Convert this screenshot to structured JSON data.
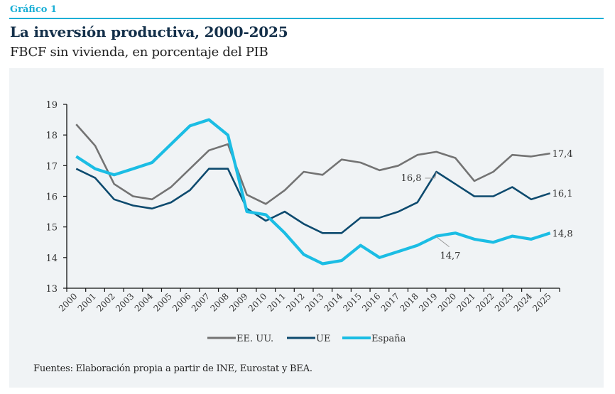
{
  "header": {
    "kicker": "Gráfico 1",
    "title": "La inversión productiva, 2000-2025",
    "subtitle": "FBCF sin vivienda, en porcentaje del PIB"
  },
  "footer": {
    "source": "Fuentes: Elaboración propia a partir de INE, Eurostat y BEA."
  },
  "colors": {
    "accent": "#1aafd6",
    "us": "#737373",
    "eu": "#0d4a6e",
    "spain": "#1bbde4",
    "panel": "#f0f3f5"
  },
  "chart_data": {
    "type": "line",
    "title": "La inversión productiva, 2000-2025",
    "subtitle": "FBCF sin vivienda, en porcentaje del PIB",
    "xlabel": "",
    "ylabel": "",
    "ylim": [
      13,
      19
    ],
    "yticks": [
      "13",
      "14",
      "15",
      "16",
      "17",
      "18",
      "19"
    ],
    "grid": false,
    "legend_position": "bottom",
    "categories": [
      "2000",
      "2001",
      "2002",
      "2003",
      "2004",
      "2005",
      "2006",
      "2007",
      "2008",
      "2009",
      "2010",
      "2011",
      "2012",
      "2013",
      "2014",
      "2015",
      "2016",
      "2017",
      "2018",
      "2019",
      "2020",
      "2021",
      "2022",
      "2023",
      "2024",
      "2025"
    ],
    "series": [
      {
        "name": "EE. UU.",
        "key": "us",
        "values": [
          18.35,
          17.65,
          16.4,
          16.0,
          15.9,
          16.3,
          16.9,
          17.5,
          17.7,
          16.05,
          15.75,
          16.2,
          16.8,
          16.7,
          17.2,
          17.1,
          16.85,
          17.0,
          17.35,
          17.45,
          17.25,
          16.5,
          16.8,
          17.35,
          17.3,
          17.4
        ]
      },
      {
        "name": "UE",
        "key": "eu",
        "values": [
          16.9,
          16.6,
          15.9,
          15.7,
          15.6,
          15.8,
          16.2,
          16.9,
          16.9,
          15.6,
          15.2,
          15.5,
          15.1,
          14.8,
          14.8,
          15.3,
          15.3,
          15.5,
          15.8,
          16.8,
          16.4,
          16.0,
          16.0,
          16.3,
          15.9,
          16.1
        ]
      },
      {
        "name": "España",
        "key": "spain",
        "values": [
          17.3,
          16.9,
          16.7,
          16.9,
          17.1,
          17.7,
          18.3,
          18.5,
          18.0,
          15.5,
          15.4,
          14.8,
          14.1,
          13.8,
          13.9,
          14.4,
          14.0,
          14.2,
          14.4,
          14.7,
          14.8,
          14.6,
          14.5,
          14.7,
          14.6,
          14.8
        ]
      }
    ],
    "annotations": [
      {
        "series": "us",
        "category": "2025",
        "text": "17,4"
      },
      {
        "series": "eu",
        "category": "2025",
        "text": "16,1"
      },
      {
        "series": "spain",
        "category": "2025",
        "text": "14,8"
      },
      {
        "series": "eu",
        "category": "2019",
        "text": "16,8"
      },
      {
        "series": "spain",
        "category": "2019",
        "text": "14,7"
      }
    ]
  }
}
